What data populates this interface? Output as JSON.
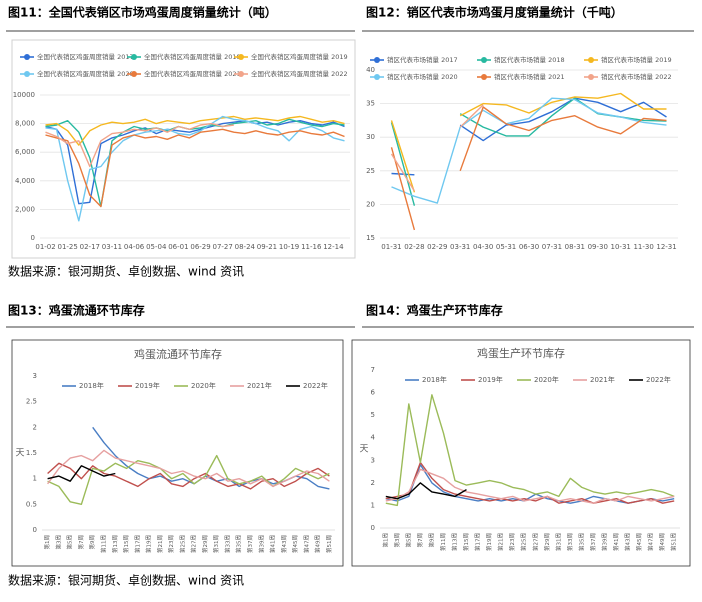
{
  "captions": [
    "图11：全国代表销区市场鸡蛋周度销量统计（吨）",
    "图12：销区代表市场鸡蛋月度销量统计（千吨）",
    "图13：鸡蛋流通环节库存",
    "图14：鸡蛋生产环节库存"
  ],
  "sources": [
    "数据来源：银河期货、卓创数据、wind 资讯",
    "数据来源：银河期货、卓创数据、wind 资讯"
  ],
  "chart_data": [
    {
      "type": "line",
      "grid": true,
      "legend": "top",
      "categories": [
        "01-02",
        null,
        "01-25",
        null,
        "02-17",
        null,
        "03-11",
        null,
        "04-06",
        null,
        "05-04",
        null,
        "06-01",
        null,
        "06-29",
        null,
        "07-27",
        null,
        "08-24",
        null,
        "09-21",
        null,
        "10-19",
        null,
        "11-16",
        null,
        "12-14",
        null
      ],
      "ylim": [
        0,
        10000
      ],
      "yticks": [
        0,
        {
          "value": 2000,
          "label": "2,000"
        },
        {
          "value": 4000,
          "label": "4,000"
        },
        {
          "value": 6000,
          "label": "6,000"
        },
        {
          "value": 8000,
          "label": "8,000"
        },
        10000
      ],
      "series": [
        {
          "name": "全国代表销区鸡蛋周度销量 2017",
          "color": "#2f6fd6",
          "values": [
            7800,
            7600,
            6500,
            2400,
            2500,
            6600,
            7000,
            7200,
            7500,
            7700,
            7300,
            7600,
            7500,
            7400,
            7600,
            7800,
            8000,
            8100,
            8200,
            8000,
            8100,
            7900,
            8100,
            8200,
            8000,
            7900,
            8100,
            7800
          ]
        },
        {
          "name": "全国代表销区鸡蛋周度销量 2018",
          "color": "#27b9a0",
          "values": [
            7800,
            7900,
            8200,
            7400,
            5600,
            2200,
            6800,
            7400,
            7800,
            7600,
            7700,
            7500,
            7800,
            7600,
            7700,
            7900,
            7800,
            8000,
            8100,
            8200,
            7900,
            8000,
            8300,
            8100,
            7900,
            7800,
            8000,
            7900
          ]
        },
        {
          "name": "全国代表销区鸡蛋周度销量 2019",
          "color": "#f5b820",
          "values": [
            7900,
            8000,
            7500,
            6500,
            7500,
            7900,
            8100,
            8000,
            8100,
            8300,
            8000,
            8200,
            8100,
            8000,
            8200,
            8300,
            8400,
            8500,
            8300,
            8400,
            8300,
            8200,
            8400,
            8500,
            8300,
            8100,
            8200,
            8000
          ]
        },
        {
          "name": "全国代表销区鸡蛋周度销量 2020",
          "color": "#6fc8f0",
          "values": [
            7700,
            7600,
            4000,
            1200,
            4800,
            5000,
            6000,
            6800,
            7200,
            7400,
            7500,
            7600,
            7300,
            7200,
            7500,
            8000,
            8500,
            8300,
            8200,
            8000,
            7700,
            7500,
            6800,
            7600,
            7800,
            7500,
            7000,
            6800
          ]
        },
        {
          "name": "全国代表销区鸡蛋周度销量 2021",
          "color": "#e87a3c",
          "values": [
            7200,
            7000,
            6800,
            5200,
            3000,
            2200,
            6500,
            7000,
            7200,
            7000,
            7100,
            6900,
            7200,
            7000,
            7400,
            7500,
            7600,
            7400,
            7300,
            7500,
            7300,
            7200,
            7400,
            7500,
            7300,
            7200,
            7400,
            7100
          ]
        },
        {
          "name": "全国代表销区鸡蛋周度销量 2022",
          "color": "#f2a48a",
          "values": [
            7400,
            7100,
            6600,
            6800,
            5000,
            6800,
            7300,
            7400,
            7600,
            7500,
            7700,
            7400,
            7800,
            7600,
            7900,
            8000,
            7800,
            7900,
            null,
            null,
            null,
            null,
            null,
            null,
            null,
            null,
            null,
            null
          ]
        }
      ]
    },
    {
      "type": "line",
      "grid": true,
      "legend": "top",
      "categories": [
        "01-31",
        "02-28",
        "02-29",
        "03-31",
        "04-30",
        "05-31",
        "06-30",
        "07-31",
        "08-31",
        "09-30",
        "10-31",
        "11-30",
        "12-31"
      ],
      "ylim": [
        15,
        40
      ],
      "yticks": [
        15,
        20,
        25,
        30,
        35,
        40
      ],
      "series": [
        {
          "name": "销区代表市场销量 2017",
          "color": "#2f6fd6",
          "values": [
            24.6,
            24.4,
            null,
            31.8,
            29.5,
            31.8,
            32.3,
            33.8,
            35.8,
            35.2,
            33.8,
            35.2,
            33.0
          ]
        },
        {
          "name": "销区代表市场销量 2018",
          "color": "#27b9a0",
          "values": [
            32.2,
            19.8,
            null,
            33.5,
            31.5,
            30.2,
            30.2,
            33.2,
            35.8,
            33.5,
            33.0,
            32.5,
            32.4
          ]
        },
        {
          "name": "销区代表市场销量 2019",
          "color": "#f5b820",
          "values": [
            32.5,
            21.8,
            null,
            33.2,
            35.0,
            34.8,
            33.6,
            35.2,
            36.0,
            35.8,
            36.5,
            34.2,
            34.2
          ]
        },
        {
          "name": "销区代表市场销量 2020",
          "color": "#6fc8f0",
          "values": [
            22.6,
            21.2,
            20.2,
            31.5,
            34.0,
            32.0,
            32.8,
            35.8,
            35.6,
            33.6,
            33.0,
            32.2,
            31.8
          ]
        },
        {
          "name": "销区代表市场销量 2021",
          "color": "#e87a3c",
          "values": [
            28.5,
            16.2,
            null,
            25.0,
            34.5,
            32.0,
            31.0,
            32.5,
            33.2,
            31.5,
            30.5,
            32.8,
            32.5
          ]
        },
        {
          "name": "销区代表市场销量 2022",
          "color": "#f2a48a",
          "values": [
            27.5,
            22.0,
            null,
            31.5,
            34.8,
            null,
            null,
            null,
            null,
            null,
            null,
            null,
            null
          ]
        }
      ]
    },
    {
      "type": "line",
      "grid": false,
      "legend": "top",
      "title": "鸡蛋流通环节库存",
      "y_label": "天",
      "categories": [
        "第1周",
        "第3周",
        "第5周",
        "第7周",
        "第9周",
        "第11周",
        "第13周",
        "第15周",
        "第17周",
        "第19周",
        "第21周",
        "第23周",
        "第25周",
        "第27周",
        "第29周",
        "第31周",
        "第33周",
        "第35周",
        "第37周",
        "第39周",
        "第41周",
        "第43周",
        "第45周",
        "第47周",
        "第49周",
        "第51周"
      ],
      "ylim": [
        0,
        3
      ],
      "yticks": [
        0,
        0.5,
        1,
        1.5,
        2,
        2.5,
        3
      ],
      "series": [
        {
          "name": "2018年",
          "color": "#4a7ec4",
          "values": [
            null,
            null,
            null,
            null,
            2.0,
            1.7,
            1.45,
            1.25,
            1.1,
            1.0,
            1.05,
            0.95,
            1.0,
            0.9,
            1.05,
            0.95,
            1.0,
            0.85,
            0.95,
            1.0,
            0.9,
            0.95,
            1.05,
            1.0,
            0.85,
            0.8
          ]
        },
        {
          "name": "2019年",
          "color": "#c0504d",
          "values": [
            1.1,
            1.3,
            1.2,
            1.0,
            1.25,
            1.1,
            1.05,
            0.95,
            0.85,
            1.0,
            1.1,
            0.9,
            0.85,
            1.0,
            1.1,
            0.95,
            0.85,
            0.9,
            0.8,
            0.95,
            1.0,
            0.85,
            0.95,
            1.1,
            1.2,
            1.05
          ]
        },
        {
          "name": "2020年",
          "color": "#9bbb59",
          "values": [
            0.95,
            0.85,
            0.55,
            0.5,
            1.2,
            1.15,
            1.3,
            1.2,
            1.35,
            1.3,
            1.2,
            1.0,
            1.1,
            0.9,
            1.05,
            1.45,
            1.0,
            0.9,
            0.95,
            1.05,
            0.85,
            1.0,
            1.2,
            1.1,
            1.0,
            1.1
          ]
        },
        {
          "name": "2021年",
          "color": "#e6a0a0",
          "values": [
            0.9,
            1.2,
            1.4,
            1.45,
            1.35,
            1.55,
            1.4,
            1.35,
            1.3,
            1.25,
            1.2,
            1.1,
            1.15,
            1.05,
            1.0,
            1.1,
            0.95,
            1.0,
            0.9,
            1.0,
            0.85,
            0.95,
            1.05,
            1.15,
            1.1,
            0.95
          ]
        },
        {
          "name": "2022年",
          "color": "#000000",
          "values": [
            1.0,
            1.05,
            0.95,
            1.25,
            1.15,
            1.05,
            1.1,
            null,
            null,
            null,
            null,
            null,
            null,
            null,
            null,
            null,
            null,
            null,
            null,
            null,
            null,
            null,
            null,
            null,
            null,
            null
          ]
        }
      ]
    },
    {
      "type": "line",
      "grid": false,
      "legend": "top",
      "title": "鸡蛋生产环节库存",
      "y_label": "天",
      "categories": [
        "第1周",
        "第3周",
        "第5周",
        "第7周",
        "第9周",
        "第11周",
        "第13周",
        "第15周",
        "第17周",
        "第19周",
        "第21周",
        "第23周",
        "第25周",
        "第27周",
        "第29周",
        "第31周",
        "第33周",
        "第35周",
        "第37周",
        "第39周",
        "第41周",
        "第43周",
        "第45周",
        "第47周",
        "第49周",
        "第51周"
      ],
      "ylim": [
        0,
        7
      ],
      "yticks": [
        0,
        1,
        2,
        3,
        4,
        5,
        6,
        7
      ],
      "series": [
        {
          "name": "2018年",
          "color": "#4a7ec4",
          "values": [
            1.3,
            1.2,
            1.4,
            2.8,
            2.0,
            1.6,
            1.4,
            1.3,
            1.2,
            1.3,
            1.2,
            1.3,
            1.2,
            1.5,
            1.3,
            1.2,
            1.1,
            1.2,
            1.4,
            1.3,
            1.2,
            1.1,
            1.2,
            1.3,
            1.2,
            1.3
          ]
        },
        {
          "name": "2019年",
          "color": "#c0504d",
          "values": [
            1.3,
            1.4,
            1.5,
            2.9,
            2.2,
            1.7,
            1.5,
            1.4,
            1.3,
            1.2,
            1.3,
            1.2,
            1.3,
            1.2,
            1.4,
            1.1,
            1.2,
            1.3,
            1.1,
            1.2,
            1.3,
            1.1,
            1.2,
            1.3,
            1.1,
            1.2
          ]
        },
        {
          "name": "2020年",
          "color": "#9bbb59",
          "values": [
            1.1,
            1.0,
            5.5,
            2.9,
            5.9,
            4.2,
            2.1,
            1.9,
            2.0,
            2.1,
            2.0,
            1.8,
            1.7,
            1.5,
            1.6,
            1.4,
            2.2,
            1.8,
            1.6,
            1.5,
            1.6,
            1.5,
            1.6,
            1.7,
            1.6,
            1.4
          ]
        },
        {
          "name": "2021年",
          "color": "#e6a0a0",
          "values": [
            1.2,
            1.3,
            1.6,
            2.6,
            2.4,
            2.2,
            1.8,
            1.6,
            1.5,
            1.4,
            1.3,
            1.4,
            1.2,
            1.3,
            1.4,
            1.2,
            1.3,
            1.2,
            1.1,
            1.3,
            1.2,
            1.4,
            1.3,
            1.2,
            1.3,
            1.4
          ]
        },
        {
          "name": "2022年",
          "color": "#000000",
          "values": [
            1.4,
            1.3,
            1.5,
            2.0,
            1.6,
            1.5,
            1.4,
            1.7,
            null,
            null,
            null,
            null,
            null,
            null,
            null,
            null,
            null,
            null,
            null,
            null,
            null,
            null,
            null,
            null,
            null,
            null
          ]
        }
      ]
    }
  ]
}
